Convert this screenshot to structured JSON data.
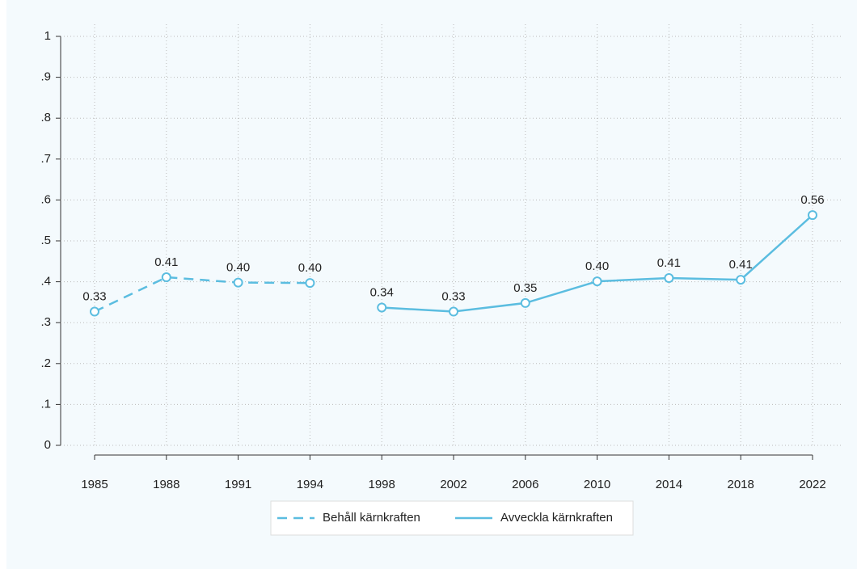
{
  "chart_data": {
    "type": "line",
    "categories": [
      "1985",
      "1988",
      "1991",
      "1994",
      "1998",
      "2002",
      "2006",
      "2010",
      "2014",
      "2018",
      "2022"
    ],
    "series": [
      {
        "name": "Behåll kärnkraften",
        "color": "#5bbde0",
        "dash": "dashed",
        "values": [
          0.327,
          0.411,
          0.398,
          0.397,
          null,
          null,
          null,
          null,
          null,
          null,
          null
        ],
        "value_labels": [
          "0.33",
          "0.41",
          "0.40",
          "0.40",
          null,
          null,
          null,
          null,
          null,
          null,
          null
        ]
      },
      {
        "name": "Avveckla kärnkraften",
        "color": "#5bbde0",
        "dash": "solid",
        "values": [
          null,
          null,
          null,
          null,
          0.337,
          0.327,
          0.348,
          0.401,
          0.409,
          0.405,
          0.563
        ],
        "value_labels": [
          null,
          null,
          null,
          null,
          "0.34",
          "0.33",
          "0.35",
          "0.40",
          "0.41",
          "0.41",
          "0.56"
        ]
      }
    ],
    "ylim": [
      0,
      1
    ],
    "yticks": [
      0,
      {
        "value": 0.1,
        "label": ".1"
      },
      {
        "value": 0.2,
        "label": ".2"
      },
      {
        "value": 0.3,
        "label": ".3"
      },
      {
        "value": 0.4,
        "label": ".4"
      },
      {
        "value": 0.5,
        "label": ".5"
      },
      {
        "value": 0.6,
        "label": ".6"
      },
      {
        "value": 0.7,
        "label": ".7"
      },
      {
        "value": 0.8,
        "label": ".8"
      },
      {
        "value": 0.9,
        "label": ".9"
      },
      1
    ],
    "grid": true,
    "legend": "bottom"
  }
}
